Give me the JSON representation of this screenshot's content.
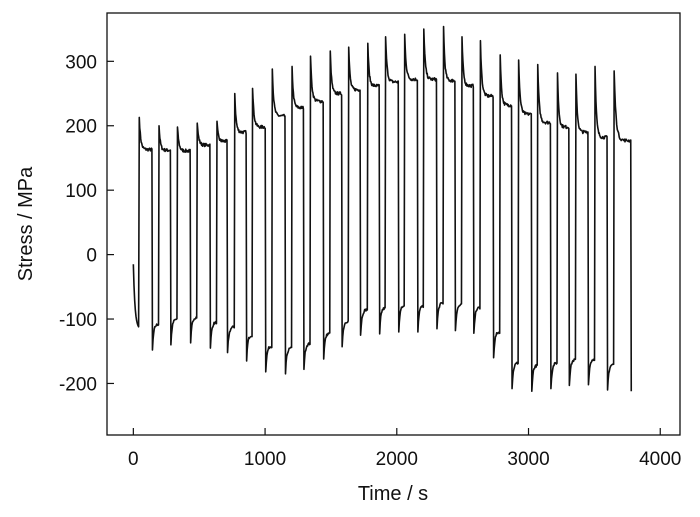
{
  "chart_data": {
    "type": "line",
    "title": "",
    "xlabel": "Time / s",
    "ylabel": "Stress / MPa",
    "xlim": [
      -200,
      4150
    ],
    "ylim": [
      -280,
      375
    ],
    "xticks": [
      0,
      1000,
      2000,
      3000,
      4000
    ],
    "yticks": [
      -200,
      -100,
      0,
      100,
      200,
      300
    ],
    "xtick_labels": [
      "0",
      "1000",
      "2000",
      "3000",
      "4000"
    ],
    "ytick_labels": [
      "-200",
      "-100",
      "0",
      "100",
      "200",
      "300"
    ],
    "grid": false,
    "legend": "none",
    "line_color": "#111111",
    "cycles": [
      {
        "t_up": 45,
        "peak": 213,
        "plateau": 163,
        "t_down": 145,
        "trough": -148
      },
      {
        "t_up": 195,
        "peak": 200,
        "plateau": 162,
        "t_down": 285,
        "trough": -140
      },
      {
        "t_up": 335,
        "peak": 198,
        "plateau": 161,
        "t_down": 435,
        "trough": -137
      },
      {
        "t_up": 485,
        "peak": 204,
        "plateau": 170,
        "t_down": 585,
        "trough": -145
      },
      {
        "t_up": 635,
        "peak": 207,
        "plateau": 176,
        "t_down": 715,
        "trough": -152
      },
      {
        "t_up": 770,
        "peak": 250,
        "plateau": 190,
        "t_down": 860,
        "trough": -165
      },
      {
        "t_up": 905,
        "peak": 258,
        "plateau": 198,
        "t_down": 1005,
        "trough": -182
      },
      {
        "t_up": 1055,
        "peak": 288,
        "plateau": 215,
        "t_down": 1155,
        "trough": -185
      },
      {
        "t_up": 1205,
        "peak": 292,
        "plateau": 228,
        "t_down": 1295,
        "trough": -178
      },
      {
        "t_up": 1345,
        "peak": 308,
        "plateau": 238,
        "t_down": 1445,
        "trough": -162
      },
      {
        "t_up": 1495,
        "peak": 316,
        "plateau": 250,
        "t_down": 1585,
        "trough": -143
      },
      {
        "t_up": 1635,
        "peak": 322,
        "plateau": 256,
        "t_down": 1725,
        "trough": -125
      },
      {
        "t_up": 1780,
        "peak": 328,
        "plateau": 262,
        "t_down": 1870,
        "trough": -123
      },
      {
        "t_up": 1915,
        "peak": 338,
        "plateau": 268,
        "t_down": 2015,
        "trough": -120
      },
      {
        "t_up": 2060,
        "peak": 342,
        "plateau": 272,
        "t_down": 2160,
        "trough": -120
      },
      {
        "t_up": 2205,
        "peak": 350,
        "plateau": 272,
        "t_down": 2305,
        "trough": -115
      },
      {
        "t_up": 2355,
        "peak": 354,
        "plateau": 270,
        "t_down": 2445,
        "trough": -118
      },
      {
        "t_up": 2495,
        "peak": 338,
        "plateau": 262,
        "t_down": 2585,
        "trough": -122
      },
      {
        "t_up": 2635,
        "peak": 332,
        "plateau": 246,
        "t_down": 2735,
        "trough": -160
      },
      {
        "t_up": 2785,
        "peak": 310,
        "plateau": 232,
        "t_down": 2875,
        "trough": -208
      },
      {
        "t_up": 2925,
        "peak": 302,
        "plateau": 218,
        "t_down": 3025,
        "trough": -212
      },
      {
        "t_up": 3070,
        "peak": 295,
        "plateau": 205,
        "t_down": 3170,
        "trough": -208
      },
      {
        "t_up": 3220,
        "peak": 282,
        "plateau": 198,
        "t_down": 3310,
        "trough": -203
      },
      {
        "t_up": 3360,
        "peak": 280,
        "plateau": 190,
        "t_down": 3455,
        "trough": -202
      },
      {
        "t_up": 3505,
        "peak": 292,
        "plateau": 182,
        "t_down": 3600,
        "trough": -210
      },
      {
        "t_up": 3650,
        "peak": 285,
        "plateau": 177,
        "t_down": 3780,
        "trough": -212
      }
    ]
  }
}
